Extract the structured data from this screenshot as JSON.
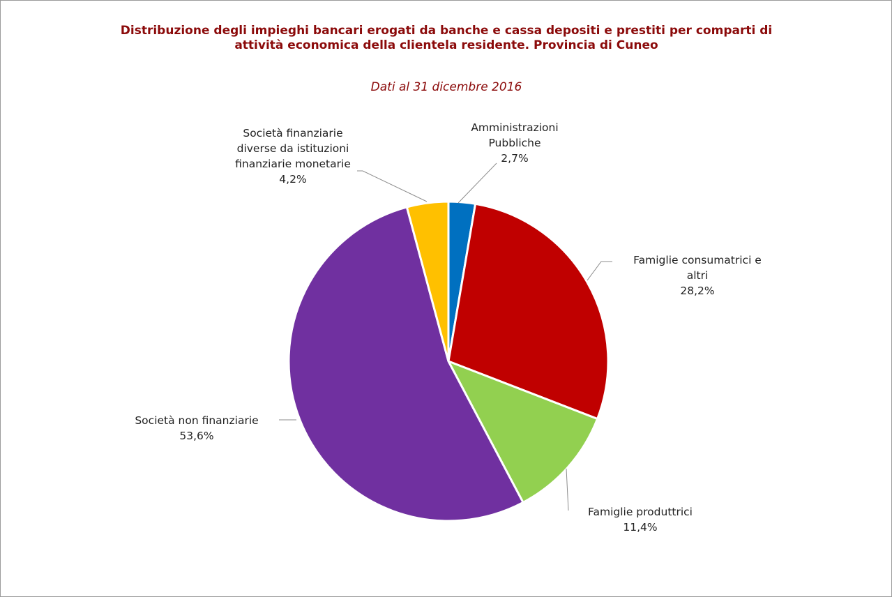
{
  "chart_data": {
    "type": "pie",
    "title": "Distribuzione degli impieghi bancari erogati da banche e cassa depositi e prestiti per comparti di attività economica della clientela residente. Provincia di Cuneo",
    "subtitle": "Dati al 31 dicembre 2016",
    "categories": [
      "Amministrazioni Pubbliche",
      "Famiglie consumatrici e altri",
      "Famiglie produttrici",
      "Società non finanziarie",
      "Società finanziarie diverse da istituzioni finanziarie monetarie"
    ],
    "values": [
      2.7,
      28.2,
      11.4,
      53.6,
      4.2
    ],
    "value_labels": [
      "2,7%",
      "28,2%",
      "11,4%",
      "53,6%",
      "4,2%"
    ],
    "colors": [
      "#0070c0",
      "#c00000",
      "#92d050",
      "#7030a0",
      "#ffc000"
    ]
  }
}
